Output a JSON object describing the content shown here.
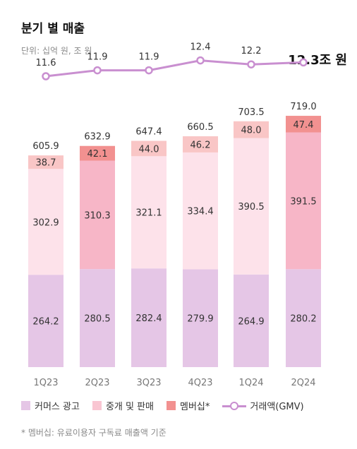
{
  "header": {
    "title": "분기 별 매출",
    "unit": "단위: 십억 원, 조 원",
    "total_gmv": "12.3조 원"
  },
  "footnote": "* 멤버십: 유료이용자 구독료 매출액 기준",
  "legend": {
    "commerce_ads": "커머스 광고",
    "brokerage_sales": "중개 및 판매",
    "membership": "멤버십*",
    "gmv": "거래액(GMV)"
  },
  "colors": {
    "commerce_ads": "#e5c6e6",
    "brokerage_sales": "#fde2ea",
    "brokerage_sales_highlight": "#f7b6c7",
    "membership": "#f9c6c6",
    "membership_highlight": "#f29190",
    "gmv_line": "#c98fd0"
  },
  "chart_data": {
    "type": "bar",
    "stacked": true,
    "categories": [
      "1Q23",
      "2Q23",
      "3Q23",
      "4Q23",
      "1Q24",
      "2Q24"
    ],
    "series": [
      {
        "name": "커머스 광고",
        "values": [
          264.2,
          280.5,
          282.4,
          279.9,
          264.9,
          280.2
        ]
      },
      {
        "name": "중개 및 판매",
        "values": [
          302.9,
          310.3,
          321.1,
          334.4,
          390.5,
          391.5
        ]
      },
      {
        "name": "멤버십*",
        "values": [
          38.7,
          42.1,
          44.0,
          46.2,
          48.0,
          47.4
        ]
      }
    ],
    "totals": [
      "605.9",
      "632.9",
      "647.4",
      "660.5",
      "703.5",
      "719.0"
    ],
    "line_series": {
      "name": "거래액(GMV)",
      "values": [
        11.6,
        11.9,
        11.9,
        12.4,
        12.2,
        12.3
      ]
    },
    "line_labels": [
      "11.6",
      "11.9",
      "11.9",
      "12.4",
      "12.2",
      ""
    ],
    "highlight_categories": [
      "2Q23",
      "2Q24"
    ]
  }
}
